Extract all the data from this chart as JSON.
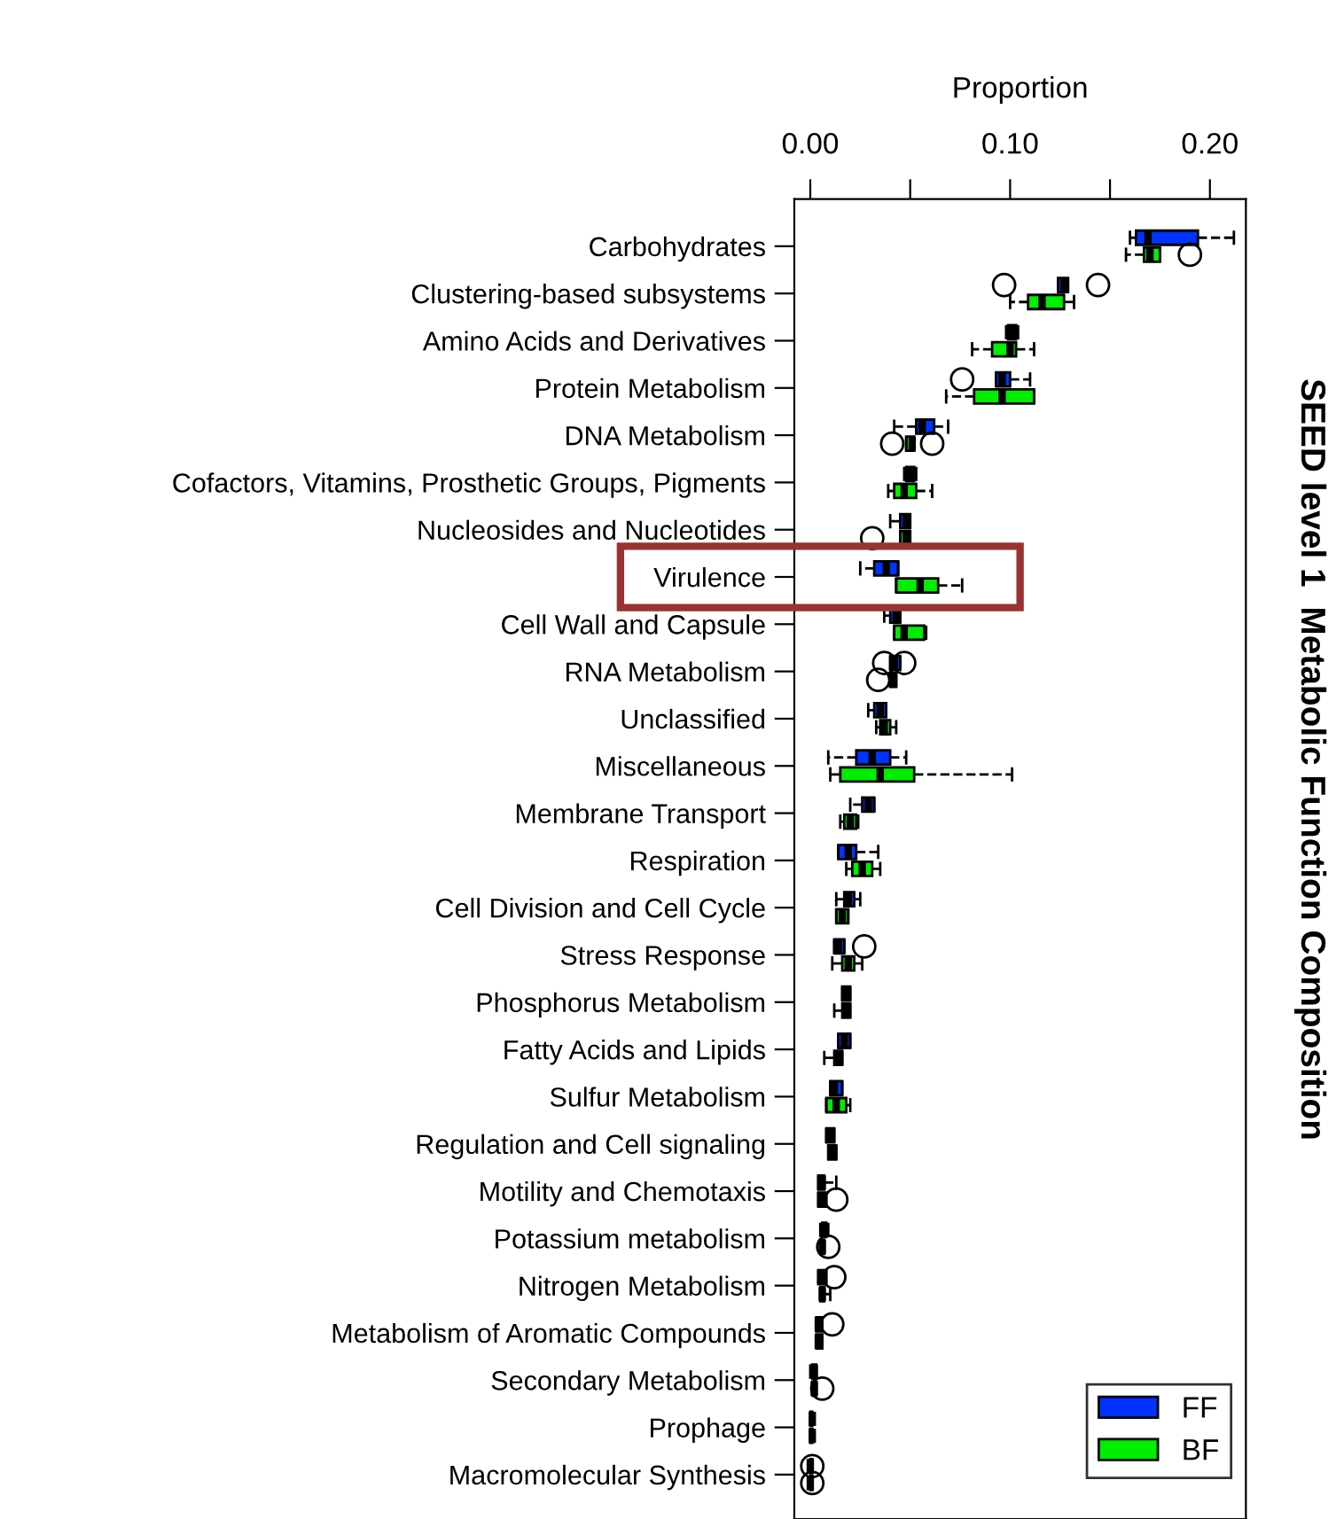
{
  "chart_data": {
    "type": "box",
    "orientation": "horizontal",
    "title": "SEED level 1  Metabolic Function Composition",
    "xlabel": "Proportion",
    "categories": [
      "Carbohydrates",
      "Clustering-based subsystems",
      "Amino Acids and Derivatives",
      "Protein Metabolism",
      "DNA Metabolism",
      "Cofactors, Vitamins, Prosthetic Groups, Pigments",
      "Nucleosides and Nucleotides",
      "Virulence",
      "Cell Wall and Capsule",
      "RNA Metabolism",
      "Unclassified",
      "Miscellaneous",
      "Membrane Transport",
      "Respiration",
      "Cell Division and Cell Cycle",
      "Stress Response",
      "Phosphorus Metabolism",
      "Fatty Acids and Lipids",
      "Sulfur Metabolism",
      "Regulation and Cell signaling",
      "Motility and Chemotaxis",
      "Potassium metabolism",
      "Nitrogen Metabolism",
      "Metabolism of Aromatic Compounds",
      "Secondary Metabolism",
      "Prophage",
      "Macromolecular Synthesis"
    ],
    "xlim": [
      -0.008,
      0.218
    ],
    "xticks": [
      {
        "value": 0.0,
        "label": "0.00"
      },
      {
        "value": 0.05,
        "label": null
      },
      {
        "value": 0.1,
        "label": "0.10"
      },
      {
        "value": 0.15,
        "label": null
      },
      {
        "value": 0.2,
        "label": "0.20"
      }
    ],
    "legend": "bottom right",
    "line_style": "dashed",
    "series": [
      {
        "name": "FF",
        "color": "#0033ff",
        "boxes": [
          {
            "low": 0.16,
            "q1": 0.163,
            "median": 0.169,
            "q3": 0.194,
            "high": 0.212
          },
          {
            "low": 0.124,
            "q1": 0.124,
            "median": 0.127,
            "q3": 0.129,
            "high": 0.129,
            "outliers": [
              0.097,
              0.144
            ]
          },
          {
            "low": 0.098,
            "q1": 0.099,
            "median": 0.101,
            "q3": 0.103,
            "high": 0.104
          },
          {
            "low": 0.093,
            "q1": 0.093,
            "median": 0.096,
            "q3": 0.1,
            "high": 0.11,
            "outliers": [
              0.076
            ]
          },
          {
            "low": 0.042,
            "q1": 0.053,
            "median": 0.056,
            "q3": 0.062,
            "high": 0.069
          },
          {
            "low": 0.047,
            "q1": 0.048,
            "median": 0.05,
            "q3": 0.052,
            "high": 0.053
          },
          {
            "low": 0.04,
            "q1": 0.045,
            "median": 0.048,
            "q3": 0.05,
            "high": 0.05
          },
          {
            "low": 0.025,
            "q1": 0.032,
            "median": 0.038,
            "q3": 0.044,
            "high": 0.044
          },
          {
            "low": 0.037,
            "q1": 0.04,
            "median": 0.043,
            "q3": 0.045,
            "high": 0.045
          },
          {
            "low": 0.04,
            "q1": 0.04,
            "median": 0.042,
            "q3": 0.045,
            "high": 0.045,
            "outliers": [
              0.037,
              0.047
            ]
          },
          {
            "low": 0.029,
            "q1": 0.032,
            "median": 0.035,
            "q3": 0.038,
            "high": 0.038
          },
          {
            "low": 0.009,
            "q1": 0.023,
            "median": 0.031,
            "q3": 0.04,
            "high": 0.048
          },
          {
            "low": 0.02,
            "q1": 0.026,
            "median": 0.029,
            "q3": 0.032,
            "high": 0.032
          },
          {
            "low": 0.014,
            "q1": 0.014,
            "median": 0.019,
            "q3": 0.023,
            "high": 0.034
          },
          {
            "low": 0.013,
            "q1": 0.017,
            "median": 0.019,
            "q3": 0.022,
            "high": 0.025
          },
          {
            "low": 0.012,
            "q1": 0.012,
            "median": 0.014,
            "q3": 0.017,
            "high": 0.017,
            "outliers": [
              0.027
            ]
          },
          {
            "low": 0.016,
            "q1": 0.016,
            "median": 0.018,
            "q3": 0.02,
            "high": 0.02
          },
          {
            "low": 0.014,
            "q1": 0.014,
            "median": 0.017,
            "q3": 0.02,
            "high": 0.02
          },
          {
            "low": 0.01,
            "q1": 0.01,
            "median": 0.012,
            "q3": 0.016,
            "high": 0.016
          },
          {
            "low": 0.008,
            "q1": 0.008,
            "median": 0.01,
            "q3": 0.012,
            "high": 0.012
          },
          {
            "low": 0.004,
            "q1": 0.004,
            "median": 0.006,
            "q3": 0.007,
            "high": 0.013
          },
          {
            "low": 0.005,
            "q1": 0.006,
            "median": 0.007,
            "q3": 0.008,
            "high": 0.009
          },
          {
            "low": 0.004,
            "q1": 0.004,
            "median": 0.006,
            "q3": 0.008,
            "high": 0.008,
            "outliers": [
              0.012
            ]
          },
          {
            "low": 0.003,
            "q1": 0.003,
            "median": 0.004,
            "q3": 0.006,
            "high": 0.006,
            "outliers": [
              0.011
            ]
          },
          {
            "low": 0.0,
            "q1": 0.001,
            "median": 0.002,
            "q3": 0.003,
            "high": 0.003
          },
          {
            "low": 0.0,
            "q1": 0.0,
            "median": 0.001,
            "q3": 0.001,
            "high": 0.001
          },
          {
            "low": 0.0,
            "q1": 0.0,
            "median": 0.0,
            "q3": 0.001,
            "high": 0.001,
            "outliers": [
              0.001
            ]
          }
        ]
      },
      {
        "name": "BF",
        "color": "#00ee00",
        "boxes": [
          {
            "low": 0.158,
            "q1": 0.167,
            "median": 0.17,
            "q3": 0.175,
            "high": 0.175,
            "outliers": [
              0.19
            ]
          },
          {
            "low": 0.1,
            "q1": 0.109,
            "median": 0.116,
            "q3": 0.127,
            "high": 0.132
          },
          {
            "low": 0.081,
            "q1": 0.091,
            "median": 0.1,
            "q3": 0.103,
            "high": 0.112
          },
          {
            "low": 0.068,
            "q1": 0.082,
            "median": 0.096,
            "q3": 0.112,
            "high": 0.112
          },
          {
            "low": 0.048,
            "q1": 0.048,
            "median": 0.051,
            "q3": 0.052,
            "high": 0.052,
            "outliers": [
              0.041,
              0.061
            ]
          },
          {
            "low": 0.039,
            "q1": 0.042,
            "median": 0.047,
            "q3": 0.053,
            "high": 0.061
          },
          {
            "low": 0.045,
            "q1": 0.045,
            "median": 0.048,
            "q3": 0.05,
            "high": 0.05,
            "outliers": [
              0.031
            ]
          },
          {
            "low": 0.043,
            "q1": 0.043,
            "median": 0.055,
            "q3": 0.064,
            "high": 0.076
          },
          {
            "low": 0.042,
            "q1": 0.042,
            "median": 0.047,
            "q3": 0.057,
            "high": 0.058
          },
          {
            "low": 0.04,
            "q1": 0.04,
            "median": 0.041,
            "q3": 0.043,
            "high": 0.043,
            "outliers": [
              0.034
            ]
          },
          {
            "low": 0.033,
            "q1": 0.035,
            "median": 0.037,
            "q3": 0.04,
            "high": 0.043
          },
          {
            "low": 0.01,
            "q1": 0.015,
            "median": 0.035,
            "q3": 0.052,
            "high": 0.101
          },
          {
            "low": 0.015,
            "q1": 0.017,
            "median": 0.02,
            "q3": 0.023,
            "high": 0.024
          },
          {
            "low": 0.018,
            "q1": 0.021,
            "median": 0.026,
            "q3": 0.031,
            "high": 0.035
          },
          {
            "low": 0.013,
            "q1": 0.013,
            "median": 0.016,
            "q3": 0.019,
            "high": 0.019
          },
          {
            "low": 0.011,
            "q1": 0.016,
            "median": 0.019,
            "q3": 0.022,
            "high": 0.026
          },
          {
            "low": 0.012,
            "q1": 0.016,
            "median": 0.018,
            "q3": 0.02,
            "high": 0.02
          },
          {
            "low": 0.007,
            "q1": 0.012,
            "median": 0.014,
            "q3": 0.016,
            "high": 0.016
          },
          {
            "low": 0.008,
            "q1": 0.008,
            "median": 0.013,
            "q3": 0.018,
            "high": 0.02
          },
          {
            "low": 0.009,
            "q1": 0.009,
            "median": 0.011,
            "q3": 0.013,
            "high": 0.013
          },
          {
            "low": 0.004,
            "q1": 0.004,
            "median": 0.006,
            "q3": 0.008,
            "high": 0.008,
            "outliers": [
              0.013
            ]
          },
          {
            "low": 0.005,
            "q1": 0.005,
            "median": 0.006,
            "q3": 0.007,
            "high": 0.007,
            "outliers": [
              0.009
            ]
          },
          {
            "low": 0.005,
            "q1": 0.005,
            "median": 0.006,
            "q3": 0.007,
            "high": 0.01
          },
          {
            "low": 0.003,
            "q1": 0.003,
            "median": 0.004,
            "q3": 0.006,
            "high": 0.006
          },
          {
            "low": 0.001,
            "q1": 0.001,
            "median": 0.002,
            "q3": 0.003,
            "high": 0.003,
            "outliers": [
              0.006
            ]
          },
          {
            "low": 0.0,
            "q1": 0.0,
            "median": 0.001,
            "q3": 0.001,
            "high": 0.001
          },
          {
            "low": 0.0,
            "q1": 0.0,
            "median": 0.0,
            "q3": 0.001,
            "high": 0.001,
            "outliers": [
              0.001
            ]
          }
        ]
      }
    ]
  }
}
